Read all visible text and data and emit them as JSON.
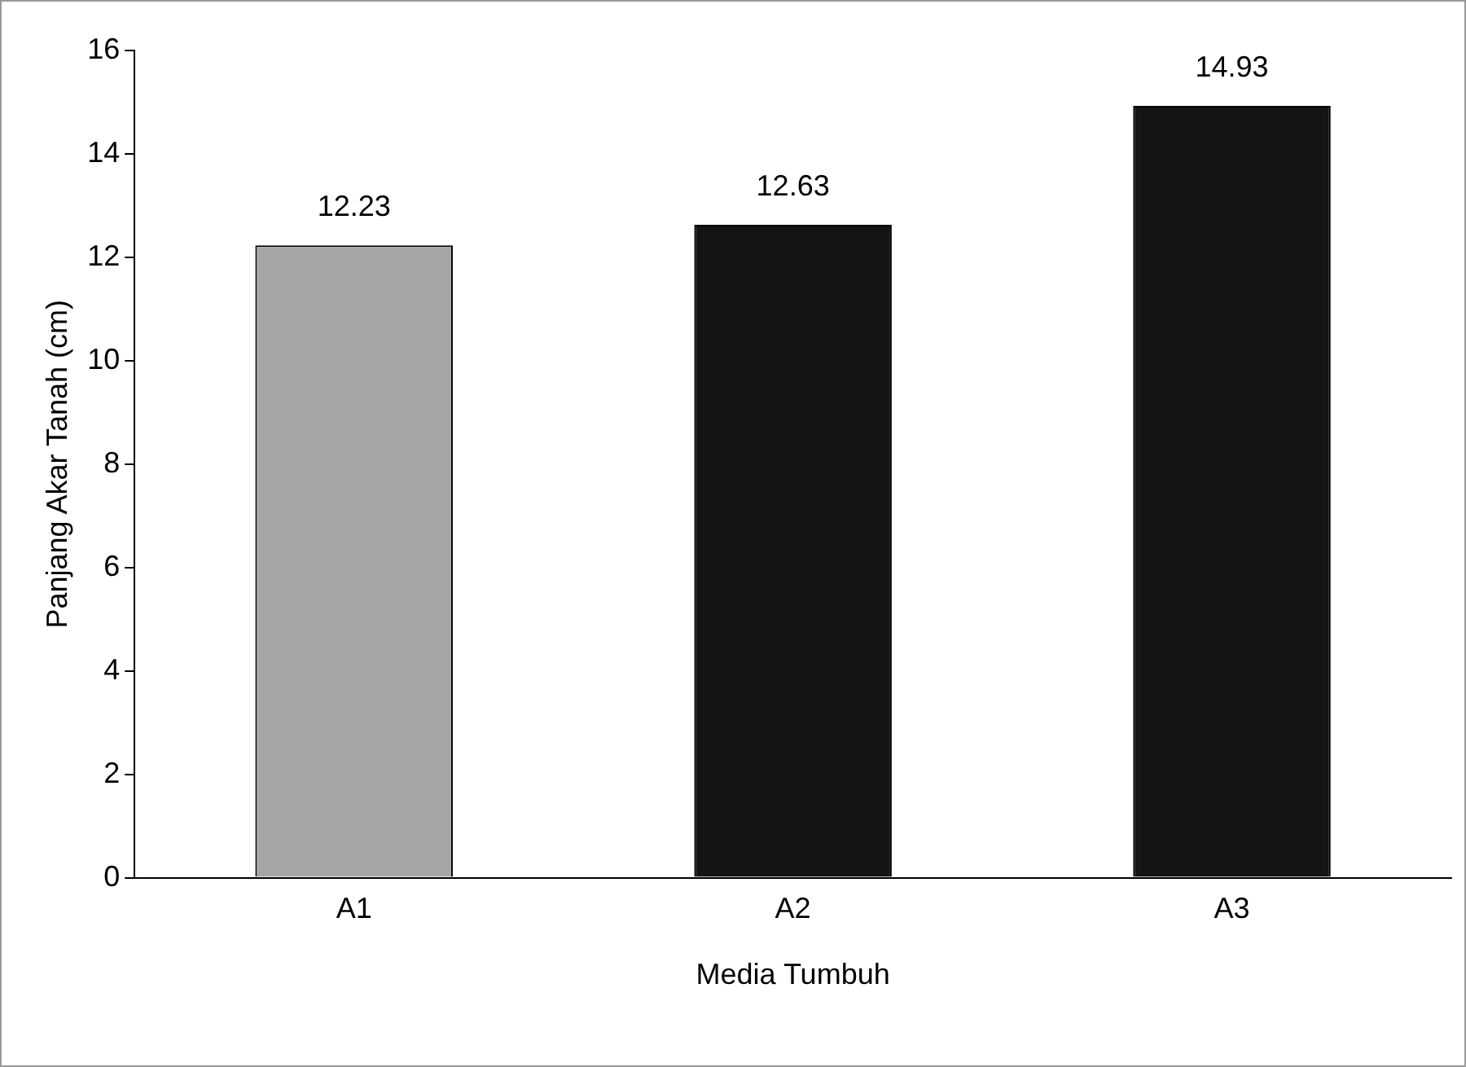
{
  "chart_data": {
    "type": "bar",
    "xlabel": "Media Tumbuh",
    "ylabel": "Panjang Akar Tanah (cm)",
    "categories": [
      "A1",
      "A2",
      "A3"
    ],
    "values": [
      12.23,
      12.63,
      14.93
    ],
    "colors": [
      "#a6a6a6",
      "#141414",
      "#141414"
    ],
    "ylim": [
      0,
      16
    ],
    "yticks": [
      0,
      2,
      4,
      6,
      8,
      10,
      12,
      14,
      16
    ],
    "data_labels": true,
    "grid": false,
    "legend": false
  }
}
